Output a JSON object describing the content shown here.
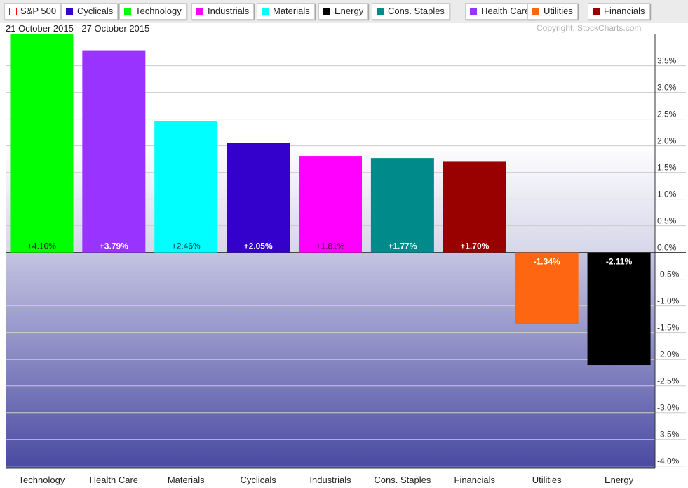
{
  "legend": [
    {
      "label": "S&P 500",
      "color": "#ff0000",
      "hollow": true
    },
    {
      "label": "Cyclicals",
      "color": "#3300cc"
    },
    {
      "label": "Technology",
      "color": "#00ff00"
    },
    {
      "label": "Industrials",
      "color": "#ff00ff"
    },
    {
      "label": "Materials",
      "color": "#00ffff"
    },
    {
      "label": "Energy",
      "color": "#000000"
    },
    {
      "label": "Cons. Staples",
      "color": "#008b8b"
    },
    {
      "label": "Health Care",
      "color": "#9933ff"
    },
    {
      "label": "Utilities",
      "color": "#ff6611"
    },
    {
      "label": "Financials",
      "color": "#990000"
    }
  ],
  "date_range": "21 October 2015 - 27 October 2015",
  "copyright": "Copyright, StockCharts.com",
  "chart_data": {
    "type": "bar",
    "categories": [
      "Technology",
      "Health Care",
      "Materials",
      "Cyclicals",
      "Industrials",
      "Cons. Staples",
      "Financials",
      "Utilities",
      "Energy"
    ],
    "values": [
      4.1,
      3.79,
      2.46,
      2.05,
      1.81,
      1.77,
      1.7,
      -1.34,
      -2.11
    ],
    "data_labels": [
      "+4.10%",
      "+3.79%",
      "+2.46%",
      "+2.05%",
      "+1.81%",
      "+1.77%",
      "+1.70%",
      "-1.34%",
      "-2.11%"
    ],
    "colors": [
      "#00ff00",
      "#9933ff",
      "#00ffff",
      "#3300cc",
      "#ff00ff",
      "#008b8b",
      "#990000",
      "#ff6611",
      "#000000"
    ],
    "label_colors": [
      "#222",
      "#fff",
      "#222",
      "#fff",
      "#222",
      "#fff",
      "#fff",
      "#fff",
      "#fff"
    ],
    "yticks": [
      3.5,
      3.0,
      2.5,
      2.0,
      1.5,
      1.0,
      0.5,
      0.0,
      -0.5,
      -1.0,
      -1.5,
      -2.0,
      -2.5,
      -3.0,
      -3.5,
      -4.0
    ],
    "ytick_labels": [
      "3.5%",
      "3.0%",
      "2.5%",
      "2.0%",
      "1.5%",
      "1.0%",
      "0.5%",
      "0.0%",
      "-0.5%",
      "-1.0%",
      "-1.5%",
      "-2.0%",
      "-2.5%",
      "-3.0%",
      "-3.5%",
      "-4.0%"
    ],
    "ylim": [
      -4.03,
      4.1
    ],
    "grid": true,
    "legend_placement": "top"
  }
}
